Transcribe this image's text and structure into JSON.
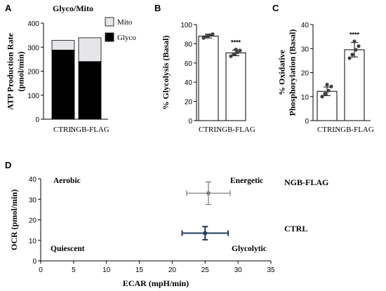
{
  "panel_letters": [
    "A",
    "B",
    "C",
    "D"
  ],
  "colors": {
    "axis": "#000000",
    "glyco": "#000000",
    "mito": "#e6e6ea",
    "bar_fill": "#ffffff",
    "dot": "#404040",
    "ngb_marker": "#808080",
    "ctrl_marker": "#1f3b57",
    "sig": "#000000"
  },
  "chart_data": [
    {
      "id": "A",
      "type": "bar",
      "stacked": true,
      "title": "Glyco/Mito",
      "ylabel": "ATP Production Rate\n(pmol/min)",
      "categories": [
        "CTRL",
        "NGB-FLAG"
      ],
      "series": [
        {
          "name": "Glyco",
          "values": [
            288,
            240
          ],
          "color": "#000000"
        },
        {
          "name": "Mito",
          "values": [
            40,
            99
          ],
          "color": "#e6e6ea"
        }
      ],
      "ylim": [
        0,
        400
      ],
      "yticks": [
        0,
        100,
        200,
        300,
        400
      ],
      "legend": "top-right"
    },
    {
      "id": "B",
      "type": "bar",
      "ylabel": "% Glycolysis (Basal)",
      "categories": [
        "CTRL",
        "NGB-FLAG"
      ],
      "values": [
        88,
        70.5
      ],
      "error": [
        2,
        3
      ],
      "points": [
        [
          86,
          87.5,
          89,
          90,
          88.5
        ],
        [
          67,
          69,
          71,
          73,
          74
        ]
      ],
      "significance": [
        "",
        "****"
      ],
      "ylim": [
        0,
        100
      ],
      "yticks": [
        0,
        20,
        40,
        60,
        80,
        100
      ]
    },
    {
      "id": "C",
      "type": "bar",
      "ylabel": "% Oxidative\nPhosphorylation (Basal)",
      "categories": [
        "CTRL",
        "NGB-FLAG"
      ],
      "values": [
        12.2,
        29.5
      ],
      "error": [
        1.8,
        3
      ],
      "points": [
        [
          10,
          11.2,
          12.5,
          14.2,
          15
        ],
        [
          26,
          27.5,
          29.5,
          31,
          33
        ]
      ],
      "significance": [
        "",
        "****"
      ],
      "ylim": [
        0,
        40
      ],
      "yticks": [
        0,
        10,
        20,
        30,
        40
      ]
    },
    {
      "id": "D",
      "type": "scatter",
      "xlabel": "ECAR (mpH/min)",
      "ylabel": "OCR (pmol/min)",
      "xlim": [
        0,
        35
      ],
      "ylim": [
        0,
        40
      ],
      "xticks": [
        0,
        5,
        10,
        15,
        20,
        25,
        30,
        35
      ],
      "yticks": [
        0,
        10,
        20,
        30,
        40
      ],
      "series": [
        {
          "name": "NGB-FLAG",
          "x": 25.5,
          "y": 33,
          "xerr": 3.3,
          "yerr": 5.5,
          "color": "#808080"
        },
        {
          "name": "CTRL",
          "x": 25,
          "y": 13.5,
          "xerr": 3.5,
          "yerr": 3.2,
          "color": "#1f3b57"
        }
      ],
      "quadrant_labels": [
        "Aerobic",
        "Energetic",
        "Quiescent",
        "Glycolytic"
      ]
    }
  ]
}
